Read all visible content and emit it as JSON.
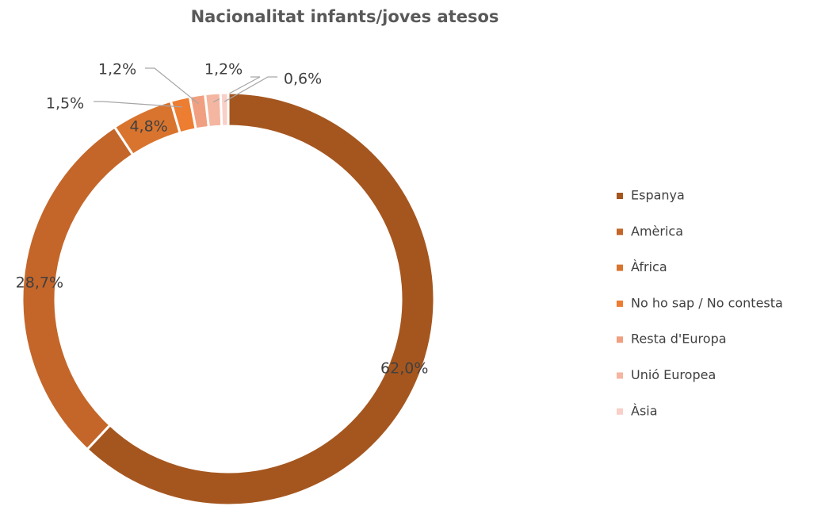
{
  "chart_data": {
    "type": "donut",
    "title": "Nacionalitat infants/joves atesos",
    "categories": [
      "Espanya",
      "Amèrica",
      "Àfrica",
      "No ho sap / No contesta",
      "Resta d'Europa",
      "Unió Europea",
      "Àsia"
    ],
    "values": [
      62.0,
      28.7,
      4.8,
      1.5,
      1.2,
      1.2,
      0.6
    ],
    "value_labels": [
      "62,0%",
      "28,7%",
      "4,8%",
      "1,5%",
      "1,2%",
      "1,2%",
      "0,6%"
    ],
    "colors": [
      "#a5561f",
      "#c4662a",
      "#d9742e",
      "#ed7d31",
      "#f0a080",
      "#f4b6a0",
      "#f8d0c8"
    ],
    "legend": "right"
  }
}
